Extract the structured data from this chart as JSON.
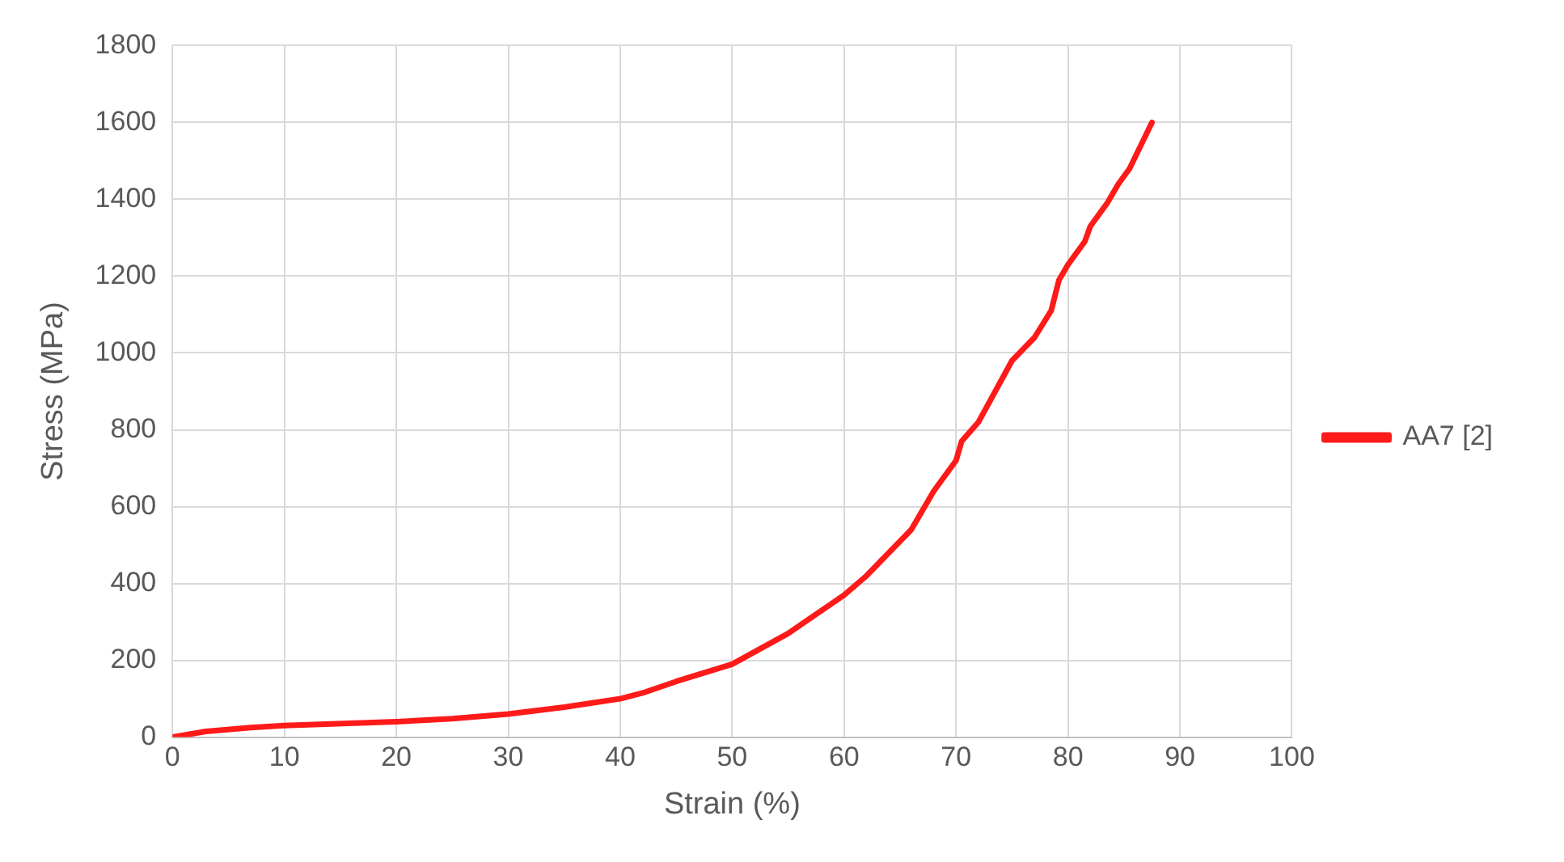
{
  "chart_data": {
    "type": "line",
    "xlabel": "Strain (%)",
    "ylabel": "Stress (MPa)",
    "xlim": [
      0,
      100
    ],
    "xticks": [
      0,
      10,
      20,
      30,
      40,
      50,
      60,
      70,
      80,
      90,
      100
    ],
    "ylim": [
      0,
      1800
    ],
    "yticks": [
      0,
      200,
      400,
      600,
      800,
      1000,
      1200,
      1400,
      1600,
      1800
    ],
    "grid": true,
    "legend": "right",
    "marker": "none",
    "series": [
      {
        "name": "AA7 [2]",
        "color": "#ff1a1a",
        "x": [
          0,
          3,
          7,
          10,
          20,
          25,
          30,
          35,
          40,
          42,
          45,
          50,
          55,
          58,
          60,
          62,
          65,
          66,
          68,
          70,
          70.5,
          72,
          75,
          77,
          78.5,
          79.2,
          80,
          81.5,
          82,
          83.5,
          84.5,
          85.5,
          86.5,
          87.5
        ],
        "values": [
          0,
          15,
          25,
          30,
          40,
          48,
          60,
          78,
          100,
          115,
          145,
          190,
          270,
          330,
          370,
          420,
          510,
          540,
          640,
          720,
          770,
          820,
          980,
          1040,
          1110,
          1190,
          1230,
          1290,
          1330,
          1390,
          1440,
          1480,
          1540,
          1600
        ]
      }
    ]
  }
}
